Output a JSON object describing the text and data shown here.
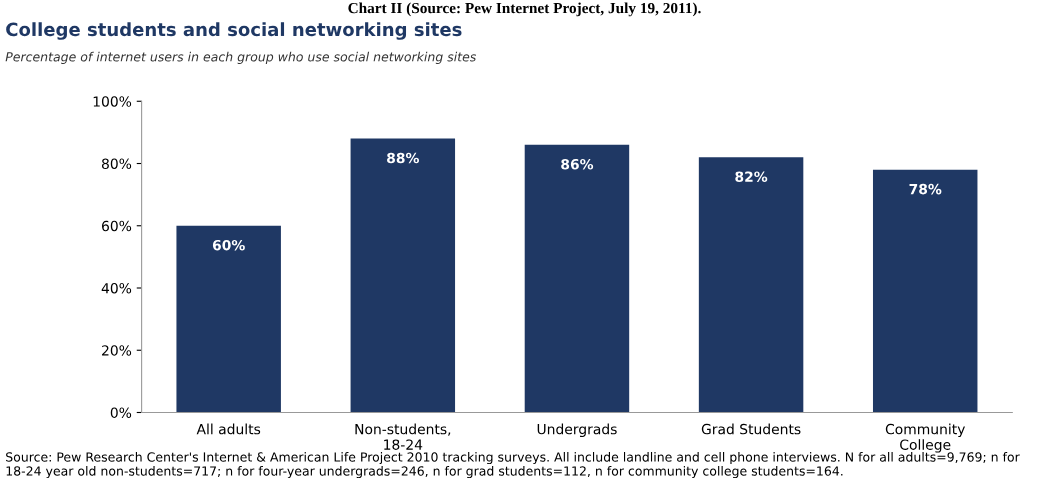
{
  "chart_data": {
    "type": "bar",
    "title": "College students and social networking sites",
    "subtitle": "Percentage of internet users in each group who use social networking sites",
    "categories": [
      "All adults",
      "Non-students,\n18-24",
      "Undergrads",
      "Grad Students",
      "Community\nCollege"
    ],
    "values": [
      60,
      88,
      86,
      82,
      78
    ],
    "value_labels": [
      "60%",
      "88%",
      "86%",
      "82%",
      "78%"
    ],
    "color": "#1f3864",
    "ylim": [
      0,
      100
    ],
    "yticks": [
      {
        "value": 0,
        "label": "0%"
      },
      {
        "value": 20,
        "label": "20%"
      },
      {
        "value": 40,
        "label": "40%"
      },
      {
        "value": 60,
        "label": "60%"
      },
      {
        "value": 80,
        "label": "80%"
      },
      {
        "value": 100,
        "label": "100%"
      }
    ],
    "grid": false,
    "annotations": [
      "Chart II (Source: Pew Internet Project, July 19, 2011).",
      "Source: Pew Research Center's Internet & American Life Project 2010 tracking surveys. All include landline and cell phone interviews. N for all adults=9,769; n for 18-24 year old non-students=717; n for four-year undergrads=246, n for grad students=112, n for community college students=164."
    ]
  }
}
